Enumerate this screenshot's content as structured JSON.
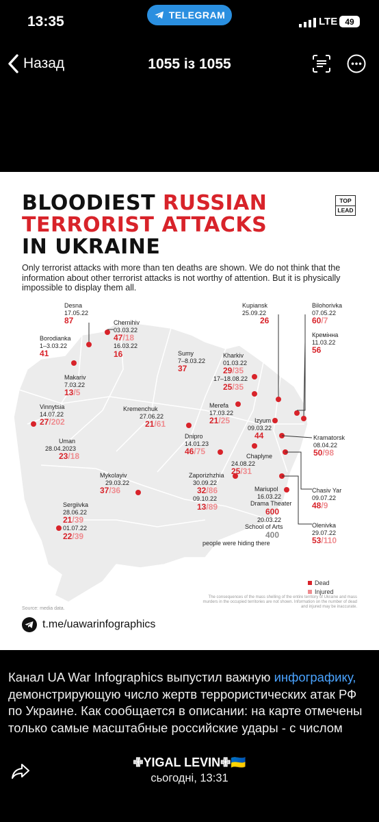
{
  "status": {
    "time": "13:35",
    "app_pill": "TELEGRAM",
    "network": "LTE",
    "battery": "49"
  },
  "nav": {
    "back_label": "Назад",
    "counter": "1055 із 1055"
  },
  "infographic": {
    "title_line1_a": "BLOODIEST ",
    "title_line1_b": "RUSSIAN",
    "title_line2": "TERRORIST ATTACKS",
    "title_line3": "IN UKRAINE",
    "logo_top": "TOP",
    "logo_bottom": "LEAD",
    "intro": "Only terrorist attacks with more than ten deaths are shown. We do not think that the information about other terrorist attacks is not worthy of attention. But it is physically impossible to display them all.",
    "places": {
      "desna": {
        "name": "Desna",
        "date": "17.05.22",
        "dead": "87"
      },
      "chernihiv": {
        "name": "Chernihiv",
        "date1": "03.03.22",
        "dead1": "47",
        "injured1": "18",
        "date2": "16.03.22",
        "dead2": "16"
      },
      "borodianka": {
        "name": "Borodianka",
        "date": "1–3.03.22",
        "dead": "41"
      },
      "makariv": {
        "name": "Makariv",
        "date": "7.03.22",
        "dead": "13",
        "injured": "5"
      },
      "sumy": {
        "name": "Sumy",
        "date": "7–8.03.22",
        "dead": "37"
      },
      "kupiansk": {
        "name": "Kupiansk",
        "date": "25.09.22",
        "dead": "26"
      },
      "bilohorivka": {
        "name": "Bilohorivka",
        "date": "07.05.22",
        "dead": "60",
        "injured": "7"
      },
      "kreminna": {
        "name": "Кремінна",
        "date": "11.03.22",
        "dead": "56"
      },
      "kharkiv": {
        "name": "Kharkiv",
        "date1": "01.03.22",
        "dead1": "29",
        "injured1": "35",
        "date2": "17–18.08.22",
        "dead2": "25",
        "injured2": "35"
      },
      "merefa": {
        "name": "Merefa",
        "date": "17.03.22",
        "dead": "21",
        "injured": "25"
      },
      "izyum": {
        "name": "Izyum",
        "date": "09.03.22",
        "dead": "44"
      },
      "vinnytsia": {
        "name": "Vinnytsia",
        "date": "14.07.22",
        "dead": "27",
        "injured": "202"
      },
      "kremenchuk": {
        "name": "Kremenchuk",
        "date": "27.06.22",
        "dead": "21",
        "injured": "61"
      },
      "dnipro": {
        "name": "Dnipro",
        "date": "14.01.23",
        "dead": "46",
        "injured": "75"
      },
      "kramatorsk": {
        "name": "Kramatorsk",
        "date": "08.04.22",
        "dead": "50",
        "injured": "98"
      },
      "uman": {
        "name": "Uman",
        "date": "28.04.2023",
        "dead": "23",
        "injured": "18"
      },
      "zaporizhzhia": {
        "name": "Zaporizhzhia",
        "date1": "30.09.22",
        "dead1": "32",
        "injured1": "86",
        "date2": "09.10.22",
        "dead2": "13",
        "injured2": "89"
      },
      "chaplyne": {
        "name": "Chaplyne",
        "date": "24.08.22",
        "dead": "25",
        "injured": "31"
      },
      "chasiv_yar": {
        "name": "Chasiv Yar",
        "date": "09.07.22",
        "dead": "48",
        "injured": "9"
      },
      "mykolaiv": {
        "name": "Mykolayiv",
        "date": "29.03.22",
        "dead": "37",
        "injured": "36"
      },
      "mariupol": {
        "name": "Mariupol",
        "date1": "16.03.22",
        "place1": "Drama Theater",
        "count1": "600",
        "date2": "20.03.22",
        "place2": "School of Arts",
        "count2": "400",
        "note": "people were hiding there"
      },
      "sergiivka": {
        "name": "Sergiivka",
        "date1": "28.06.22",
        "dead1": "21",
        "injured1": "39",
        "date2": "01.07.22",
        "dead2": "22",
        "injured2": "39"
      },
      "olenivka": {
        "name": "Olenivka",
        "date": "29.07.22",
        "dead": "53",
        "injured": "110"
      }
    },
    "legend_dead": "Dead",
    "legend_injured": "Injured",
    "legend_dead_color": "#d8232a",
    "legend_injured_color": "#ee8b8f",
    "note": "The consequences of the mass shelling of the entire territory of Ukraine and mass murders in the occupied territories are not shown. Information on the number of dead and injured may be inaccurate.",
    "source": "Source: media data.",
    "telegram_link": "t.me/uawarinfographics"
  },
  "caption": {
    "part1": "Канал UA War Infographics выпустил важную ",
    "link": "инфографику,",
    "part2": " демонстрирующую число жертв террористических атак РФ по Украине. Как сообщается в описании: на карте отмечены только самые масштабные российские удары - с числом"
  },
  "footer": {
    "author": "✙YIGAL LEVIN✙🇺🇦",
    "date": "сьогодні, 13:31"
  }
}
